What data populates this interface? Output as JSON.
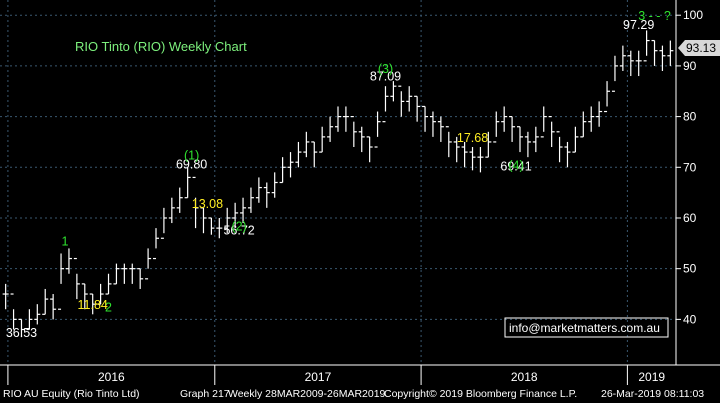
{
  "chart_data": {
    "type": "ohlc",
    "title": "RIO Tinto (RIO) Weekly Chart",
    "last_price": "93.13",
    "ylim": [
      31,
      103
    ],
    "y_ticks": [
      40,
      50,
      60,
      70,
      80,
      90,
      100
    ],
    "x_labels": [
      "2016",
      "2017",
      "2018",
      "2019"
    ],
    "watermark": "info@marketmatters.com.au",
    "price_labels": [
      {
        "text": "36.53",
        "x": "2016-01-25",
        "y": 36.5
      },
      {
        "text": "69.80",
        "x": "2016-11-21",
        "y": 69.8
      },
      {
        "text": "56.72",
        "x": "2017-02-13",
        "y": 56.7
      },
      {
        "text": "87.09",
        "x": "2017-10-30",
        "y": 87.1
      },
      {
        "text": "69.41",
        "x": "2018-06-18",
        "y": 69.4
      },
      {
        "text": "97.29",
        "x": "2019-01-21",
        "y": 97.3
      }
    ],
    "wave_labels": [
      {
        "text": "1",
        "x": "2016-04-11",
        "y": 53
      },
      {
        "text": "2",
        "x": "2016-06-27",
        "y": 40
      },
      {
        "text": "(1)",
        "x": "2016-11-21",
        "y": 70
      },
      {
        "text": "(2)",
        "x": "2017-02-13",
        "y": 56
      },
      {
        "text": "(3)",
        "x": "2017-10-30",
        "y": 87
      },
      {
        "text": "(4)",
        "x": "2018-06-18",
        "y": 68
      },
      {
        "text": "3 - - ?",
        "x": "2019-02-18",
        "y": 97.5
      }
    ],
    "measure_labels": [
      {
        "text": "11.84",
        "x": "2016-05-30",
        "y": 42
      },
      {
        "text": "13.08",
        "x": "2016-12-19",
        "y": 62
      },
      {
        "text": "17.68",
        "x": "2018-04-02",
        "y": 75
      }
    ],
    "series": [
      {
        "x": [
          "2015-12-28",
          "2016-01-11",
          "2016-01-25",
          "2016-02-08",
          "2016-02-22",
          "2016-03-07",
          "2016-03-21",
          "2016-04-04",
          "2016-04-18",
          "2016-05-02",
          "2016-05-16",
          "2016-05-30",
          "2016-06-13",
          "2016-06-27",
          "2016-07-11",
          "2016-07-25",
          "2016-08-08",
          "2016-08-22",
          "2016-09-05",
          "2016-09-19",
          "2016-10-03",
          "2016-10-17",
          "2016-10-31",
          "2016-11-14",
          "2016-11-28",
          "2016-12-12",
          "2016-12-26",
          "2017-01-09",
          "2017-01-23",
          "2017-02-06",
          "2017-02-20",
          "2017-03-06",
          "2017-03-20",
          "2017-04-03",
          "2017-04-17",
          "2017-05-01",
          "2017-05-15",
          "2017-05-29",
          "2017-06-12",
          "2017-06-26",
          "2017-07-10",
          "2017-07-24",
          "2017-08-07",
          "2017-08-21",
          "2017-09-04",
          "2017-09-18",
          "2017-10-02",
          "2017-10-16",
          "2017-10-30",
          "2017-11-13",
          "2017-11-27",
          "2017-12-11",
          "2017-12-25",
          "2018-01-08",
          "2018-01-22",
          "2018-02-05",
          "2018-02-19",
          "2018-03-05",
          "2018-03-19",
          "2018-04-02",
          "2018-04-16",
          "2018-04-30",
          "2018-05-14",
          "2018-05-28",
          "2018-06-11",
          "2018-06-25",
          "2018-07-09",
          "2018-07-23",
          "2018-08-06",
          "2018-08-20",
          "2018-09-03",
          "2018-09-17",
          "2018-10-01",
          "2018-10-15",
          "2018-10-29",
          "2018-11-12",
          "2018-11-26",
          "2018-12-10",
          "2018-12-24",
          "2019-01-07",
          "2019-01-21",
          "2019-02-04",
          "2019-02-18",
          "2019-03-04",
          "2019-03-18"
        ],
        "close": [
          45,
          40,
          38,
          40,
          41,
          44,
          42,
          50,
          52,
          47,
          45,
          43,
          45,
          47,
          50,
          50,
          50,
          48,
          52,
          56,
          60,
          62,
          64,
          68,
          62,
          60,
          58,
          58,
          60,
          61,
          62,
          64,
          66,
          65,
          67,
          70,
          71,
          73,
          75,
          73,
          76,
          78,
          80,
          80,
          77,
          76,
          74,
          79,
          84,
          86,
          83,
          84,
          82,
          80,
          79,
          78,
          75,
          74,
          73,
          72,
          72,
          75,
          79,
          80,
          78,
          76,
          75,
          76,
          80,
          77,
          74,
          73,
          76,
          79,
          80,
          81,
          85,
          90,
          92,
          91,
          91,
          95,
          93,
          92,
          93
        ],
        "high": [
          47,
          42,
          40,
          42,
          43,
          46,
          45,
          53,
          54,
          49,
          47,
          45,
          47,
          49,
          51,
          51,
          51,
          50,
          54,
          58,
          62,
          64,
          66,
          70,
          64,
          62,
          60,
          60,
          62,
          63,
          64,
          66,
          68,
          67,
          69,
          72,
          73,
          75,
          77,
          75,
          78,
          80,
          82,
          82,
          79,
          78,
          76,
          81,
          86,
          87,
          85,
          86,
          84,
          82,
          81,
          80,
          77,
          76,
          75,
          74,
          74,
          77,
          81,
          82,
          80,
          78,
          77,
          78,
          82,
          79,
          76,
          75,
          78,
          81,
          82,
          83,
          87,
          92,
          94,
          93,
          93,
          97,
          95,
          94,
          95
        ],
        "low": [
          42,
          38,
          36.5,
          38,
          39,
          41,
          40,
          47,
          49,
          44,
          42,
          41,
          43,
          45,
          47,
          47,
          47,
          46,
          50,
          54,
          57,
          59,
          61,
          64,
          58,
          57,
          56.7,
          56,
          57,
          58,
          59,
          61,
          63,
          62,
          64,
          67,
          68,
          70,
          72,
          70,
          73,
          75,
          77,
          77,
          74,
          73,
          71,
          76,
          81,
          83,
          80,
          81,
          79,
          77,
          76,
          75,
          72,
          71,
          70,
          69.4,
          69,
          72,
          76,
          77,
          75,
          73,
          72,
          73,
          77,
          74,
          71,
          70,
          73,
          76,
          77,
          78,
          82,
          87,
          89,
          88,
          88,
          92,
          90,
          89,
          90
        ]
      }
    ]
  },
  "footer": {
    "text_1": "RIO AU Equity (Rio Tinto Ltd)",
    "text_2": "Graph 217",
    "text_3": "Weekly 28MAR2009-26MAR2019",
    "text_4": "Copyright© 2019 Bloomberg Finance L.P.",
    "text_5": "26-Mar-2019 08:11:03"
  },
  "colors": {
    "background": "#000000",
    "bars": "#ffffff",
    "grid": "#3a5870",
    "title": "#7df07d",
    "wave": "#2ee22e",
    "measure": "#ffee22",
    "price_label": "#ffffff",
    "last_price_box": "#d8d8d8"
  }
}
